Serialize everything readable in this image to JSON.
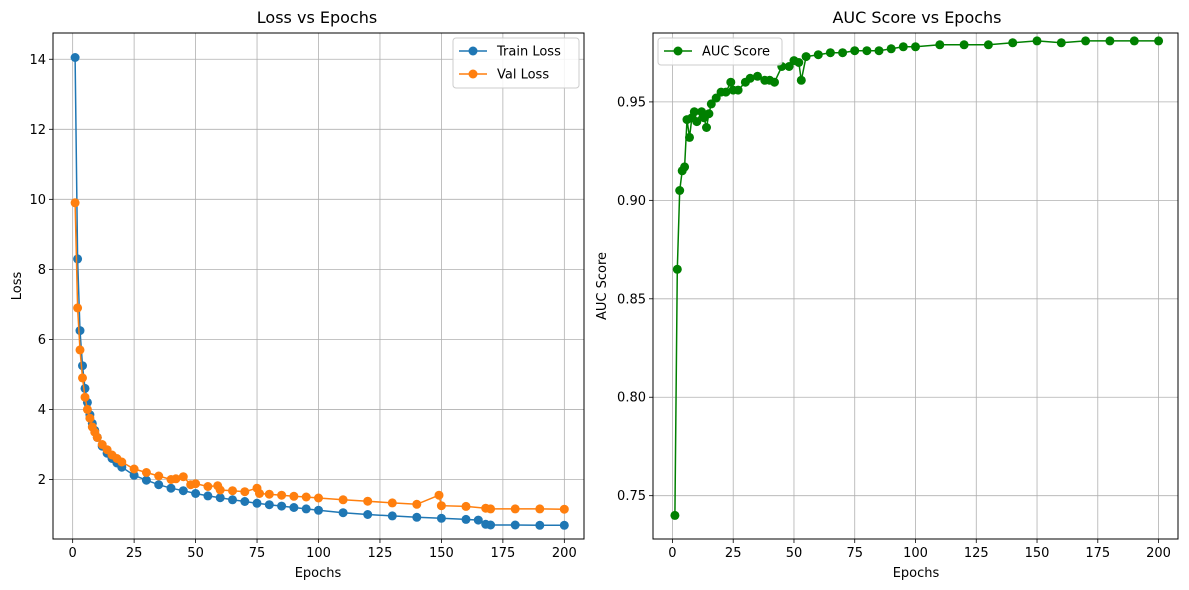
{
  "chart_data": [
    {
      "type": "line",
      "title": "Loss vs Epochs",
      "xlabel": "Epochs",
      "ylabel": "Loss",
      "xlim": [
        -8,
        208
      ],
      "ylim": [
        0.3,
        14.75
      ],
      "xticks": [
        0,
        25,
        50,
        75,
        100,
        125,
        150,
        175,
        200
      ],
      "yticks": [
        2,
        4,
        6,
        8,
        10,
        12,
        14
      ],
      "grid": true,
      "legend_position": "top-right",
      "markers": "circle",
      "series": [
        {
          "name": "Train Loss",
          "color": "#1f77b4",
          "x": [
            1,
            2,
            3,
            4,
            5,
            6,
            7,
            8,
            9,
            10,
            12,
            14,
            16,
            18,
            20,
            25,
            30,
            35,
            40,
            45,
            50,
            55,
            60,
            65,
            70,
            75,
            80,
            85,
            90,
            95,
            100,
            110,
            120,
            130,
            140,
            150,
            160,
            165,
            168,
            170,
            180,
            190,
            200
          ],
          "y": [
            14.05,
            8.3,
            6.25,
            5.25,
            4.6,
            4.2,
            3.85,
            3.6,
            3.4,
            3.2,
            2.95,
            2.75,
            2.6,
            2.47,
            2.35,
            2.12,
            1.98,
            1.85,
            1.75,
            1.68,
            1.6,
            1.53,
            1.48,
            1.42,
            1.37,
            1.32,
            1.28,
            1.24,
            1.2,
            1.16,
            1.12,
            1.05,
            1.0,
            0.96,
            0.92,
            0.89,
            0.86,
            0.84,
            0.72,
            0.7,
            0.7,
            0.69,
            0.69
          ]
        },
        {
          "name": "Val Loss",
          "color": "#ff7f0e",
          "x": [
            1,
            2,
            3,
            4,
            5,
            6,
            7,
            8,
            9,
            10,
            12,
            14,
            16,
            18,
            20,
            25,
            30,
            35,
            40,
            42,
            45,
            48,
            50,
            55,
            59,
            60,
            65,
            70,
            75,
            76,
            80,
            85,
            90,
            95,
            100,
            110,
            120,
            130,
            140,
            149,
            150,
            160,
            168,
            170,
            180,
            190,
            200
          ],
          "y": [
            9.9,
            6.9,
            5.7,
            4.9,
            4.35,
            4.0,
            3.75,
            3.5,
            3.35,
            3.2,
            3.0,
            2.85,
            2.7,
            2.6,
            2.5,
            2.3,
            2.2,
            2.1,
            2.0,
            2.02,
            2.08,
            1.85,
            1.88,
            1.8,
            1.82,
            1.7,
            1.68,
            1.65,
            1.75,
            1.6,
            1.58,
            1.55,
            1.52,
            1.5,
            1.47,
            1.42,
            1.38,
            1.33,
            1.29,
            1.55,
            1.25,
            1.23,
            1.18,
            1.16,
            1.16,
            1.16,
            1.15
          ]
        }
      ]
    },
    {
      "type": "line",
      "title": "AUC Score vs Epochs",
      "xlabel": "Epochs",
      "ylabel": "AUC Score",
      "xlim": [
        -8,
        208
      ],
      "ylim": [
        0.728,
        0.985
      ],
      "xticks": [
        0,
        25,
        50,
        75,
        100,
        125,
        150,
        175,
        200
      ],
      "yticks": [
        0.75,
        0.8,
        0.85,
        0.9,
        0.95
      ],
      "grid": true,
      "legend_position": "top-left",
      "markers": "circle",
      "series": [
        {
          "name": "AUC Score",
          "color": "#008000",
          "x": [
            1,
            2,
            3,
            4,
            5,
            6,
            7,
            8,
            9,
            10,
            12,
            13,
            14,
            15,
            16,
            18,
            20,
            22,
            24,
            25,
            27,
            30,
            32,
            35,
            38,
            40,
            42,
            45,
            48,
            50,
            52,
            53,
            55,
            60,
            65,
            70,
            75,
            80,
            85,
            90,
            95,
            100,
            110,
            120,
            130,
            140,
            150,
            160,
            170,
            180,
            190,
            200
          ],
          "y": [
            0.74,
            0.865,
            0.905,
            0.915,
            0.917,
            0.941,
            0.932,
            0.942,
            0.945,
            0.94,
            0.945,
            0.942,
            0.937,
            0.944,
            0.949,
            0.952,
            0.955,
            0.955,
            0.96,
            0.956,
            0.956,
            0.96,
            0.962,
            0.963,
            0.961,
            0.961,
            0.96,
            0.968,
            0.968,
            0.971,
            0.97,
            0.961,
            0.973,
            0.974,
            0.975,
            0.975,
            0.976,
            0.976,
            0.976,
            0.977,
            0.978,
            0.978,
            0.979,
            0.979,
            0.979,
            0.98,
            0.981,
            0.98,
            0.981,
            0.981,
            0.981,
            0.981
          ]
        }
      ]
    }
  ]
}
